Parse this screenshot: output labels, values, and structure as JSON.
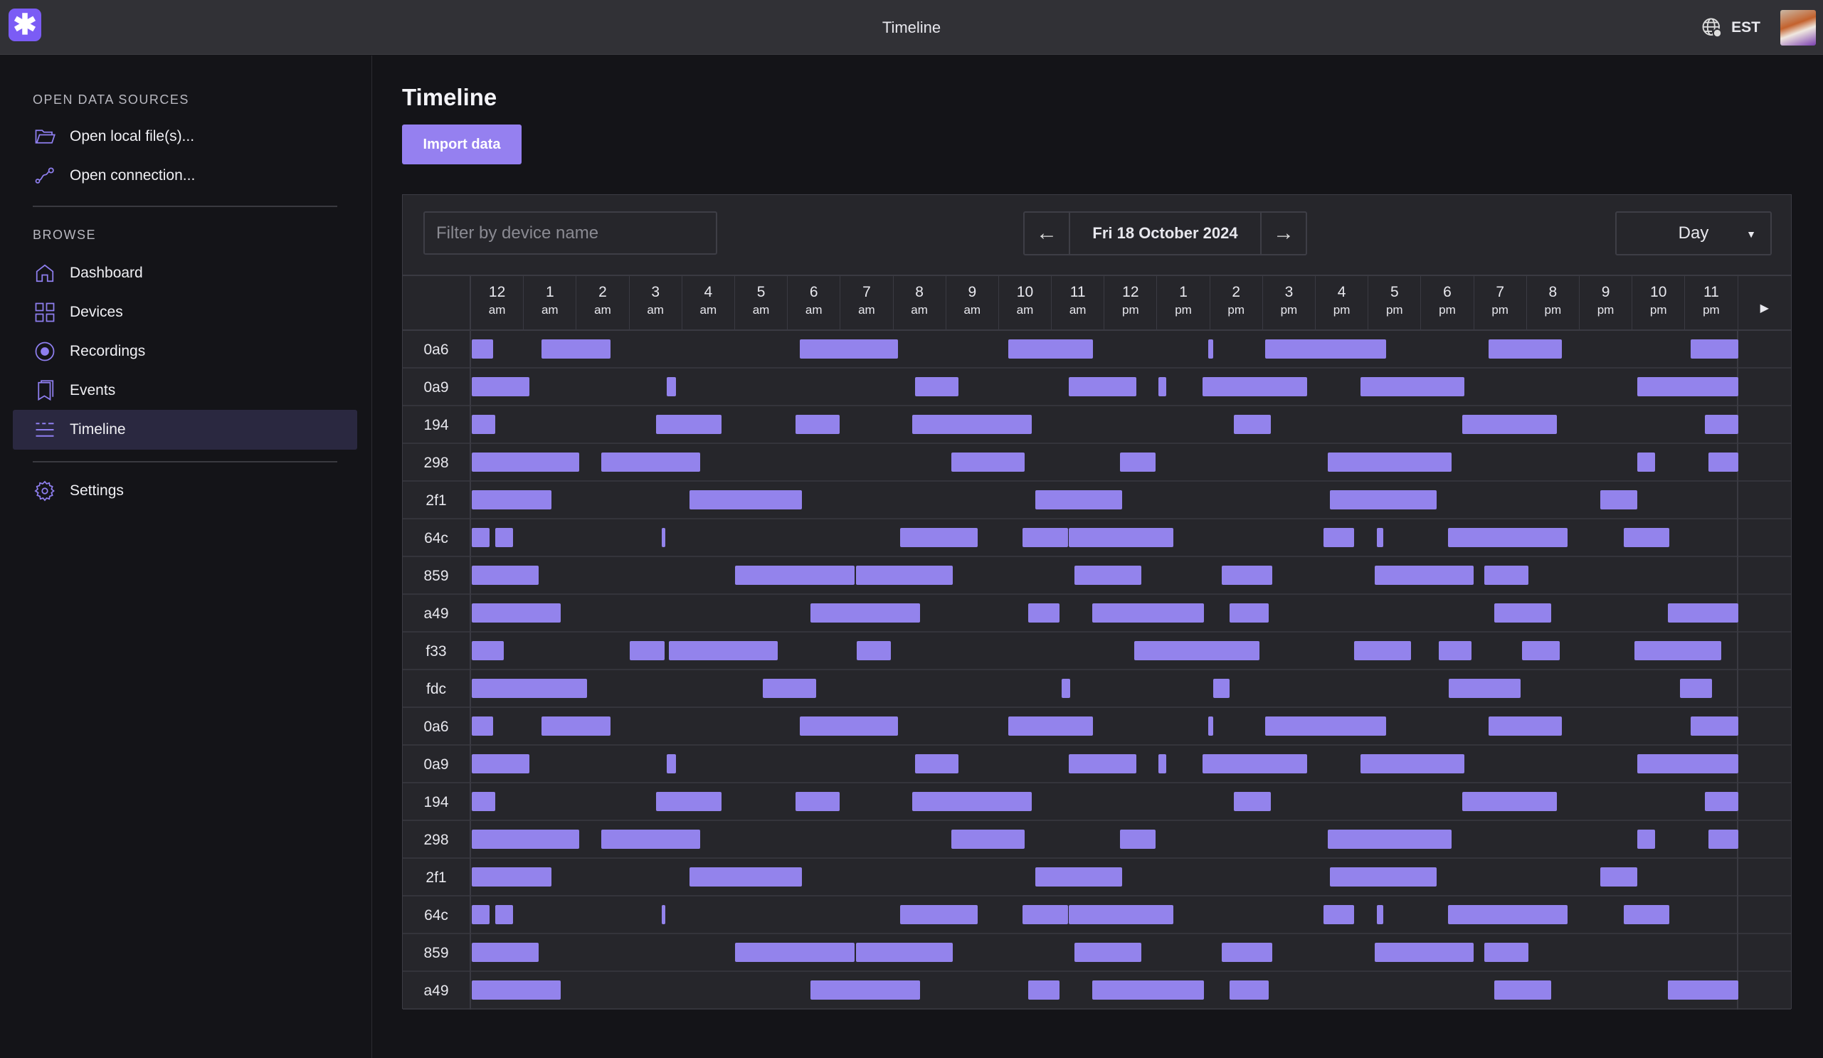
{
  "app": {
    "title": "Timeline",
    "timezone": "EST"
  },
  "sidebar": {
    "sections": [
      {
        "title": "OPEN DATA SOURCES",
        "items": [
          {
            "label": "Open local file(s)...",
            "icon": "folder-icon"
          },
          {
            "label": "Open connection...",
            "icon": "connection-icon"
          }
        ]
      },
      {
        "title": "BROWSE",
        "items": [
          {
            "label": "Dashboard",
            "icon": "home-icon"
          },
          {
            "label": "Devices",
            "icon": "grid-icon"
          },
          {
            "label": "Recordings",
            "icon": "record-icon"
          },
          {
            "label": "Events",
            "icon": "bookmark-icon"
          },
          {
            "label": "Timeline",
            "icon": "timeline-icon",
            "active": true
          }
        ]
      }
    ],
    "settings": {
      "label": "Settings",
      "icon": "gear-icon"
    }
  },
  "main": {
    "title": "Timeline",
    "import_label": "Import data",
    "filter_placeholder": "Filter by device name",
    "date": "Fri 18 October 2024",
    "view": "Day",
    "accent": "#9383ec"
  },
  "chart_data": {
    "type": "timeline",
    "x_unit": "hour of day",
    "xlim": [
      0,
      24
    ],
    "hours": [
      [
        "12",
        "am"
      ],
      [
        "1",
        "am"
      ],
      [
        "2",
        "am"
      ],
      [
        "3",
        "am"
      ],
      [
        "4",
        "am"
      ],
      [
        "5",
        "am"
      ],
      [
        "6",
        "am"
      ],
      [
        "7",
        "am"
      ],
      [
        "8",
        "am"
      ],
      [
        "9",
        "am"
      ],
      [
        "10",
        "am"
      ],
      [
        "11",
        "am"
      ],
      [
        "12",
        "pm"
      ],
      [
        "1",
        "pm"
      ],
      [
        "2",
        "pm"
      ],
      [
        "3",
        "pm"
      ],
      [
        "4",
        "pm"
      ],
      [
        "5",
        "pm"
      ],
      [
        "6",
        "pm"
      ],
      [
        "7",
        "pm"
      ],
      [
        "8",
        "pm"
      ],
      [
        "9",
        "pm"
      ],
      [
        "10",
        "pm"
      ],
      [
        "11",
        "pm"
      ]
    ],
    "devices": [
      {
        "name": "0a6",
        "spans": [
          [
            0.02,
            0.42
          ],
          [
            1.34,
            2.64
          ],
          [
            6.23,
            8.08
          ],
          [
            10.18,
            11.78
          ],
          [
            13.96,
            14.05
          ],
          [
            15.04,
            17.33
          ],
          [
            19.27,
            20.66
          ],
          [
            23.1,
            24
          ]
        ]
      },
      {
        "name": "0a9",
        "spans": [
          [
            0.02,
            1.1
          ],
          [
            3.7,
            3.88
          ],
          [
            8.41,
            9.23
          ],
          [
            11.32,
            12.6
          ],
          [
            13.02,
            13.17
          ],
          [
            13.85,
            15.84
          ],
          [
            16.85,
            18.81
          ],
          [
            22.09,
            24
          ]
        ]
      },
      {
        "name": "194",
        "spans": [
          [
            0.02,
            0.46
          ],
          [
            3.5,
            4.74
          ],
          [
            6.15,
            6.98
          ],
          [
            8.35,
            10.62
          ],
          [
            14.45,
            15.15
          ],
          [
            18.77,
            20.57
          ],
          [
            23.37,
            24
          ]
        ]
      },
      {
        "name": "298",
        "spans": [
          [
            0.02,
            2.05
          ],
          [
            2.47,
            4.34
          ],
          [
            9.1,
            10.48
          ],
          [
            12.29,
            12.97
          ],
          [
            16.23,
            18.57
          ],
          [
            22.09,
            22.42
          ],
          [
            23.44,
            24
          ]
        ]
      },
      {
        "name": "2f1",
        "spans": [
          [
            0.02,
            1.52
          ],
          [
            4.14,
            6.26
          ],
          [
            10.68,
            12.33
          ],
          [
            16.26,
            18.28
          ],
          [
            21.39,
            22.09
          ]
        ]
      },
      {
        "name": "64c",
        "spans": [
          [
            0.02,
            0.35
          ],
          [
            0.46,
            0.79
          ],
          [
            3.61,
            3.68
          ],
          [
            8.13,
            9.6
          ],
          [
            10.44,
            11.3
          ],
          [
            11.32,
            13.3
          ],
          [
            16.15,
            16.72
          ],
          [
            17.16,
            17.27
          ],
          [
            18.5,
            20.77
          ],
          [
            21.83,
            22.69
          ]
        ]
      },
      {
        "name": "859",
        "spans": [
          [
            0.02,
            1.28
          ],
          [
            5,
            7.27
          ],
          [
            7.29,
            9.12
          ],
          [
            11.43,
            12.69
          ],
          [
            14.21,
            15.18
          ],
          [
            17.11,
            18.99
          ],
          [
            19.19,
            20.02
          ]
        ]
      },
      {
        "name": "a49",
        "spans": [
          [
            0.02,
            1.7
          ],
          [
            6.43,
            8.5
          ],
          [
            10.55,
            11.15
          ],
          [
            11.76,
            13.88
          ],
          [
            14.36,
            15.11
          ],
          [
            19.38,
            20.46
          ],
          [
            22.67,
            24
          ]
        ]
      },
      {
        "name": "f33",
        "spans": [
          [
            0.02,
            0.62
          ],
          [
            3,
            3.66
          ],
          [
            3.74,
            5.81
          ],
          [
            7.31,
            7.95
          ],
          [
            12.56,
            14.93
          ],
          [
            16.72,
            17.8
          ],
          [
            18.33,
            18.94
          ],
          [
            19.91,
            20.62
          ],
          [
            22.03,
            23.68
          ]
        ]
      },
      {
        "name": "fdc",
        "spans": [
          [
            0.02,
            2.2
          ],
          [
            5.53,
            6.54
          ],
          [
            11.19,
            11.34
          ],
          [
            14.05,
            14.36
          ],
          [
            18.52,
            19.87
          ],
          [
            22.89,
            23.5
          ]
        ]
      },
      {
        "name": "0a6",
        "spans": [
          [
            0.02,
            0.42
          ],
          [
            1.34,
            2.64
          ],
          [
            6.23,
            8.08
          ],
          [
            10.18,
            11.78
          ],
          [
            13.96,
            14.05
          ],
          [
            15.04,
            17.33
          ],
          [
            19.27,
            20.66
          ],
          [
            23.1,
            24
          ]
        ]
      },
      {
        "name": "0a9",
        "spans": [
          [
            0.02,
            1.1
          ],
          [
            3.7,
            3.88
          ],
          [
            8.41,
            9.23
          ],
          [
            11.32,
            12.6
          ],
          [
            13.02,
            13.17
          ],
          [
            13.85,
            15.84
          ],
          [
            16.85,
            18.81
          ],
          [
            22.09,
            24
          ]
        ]
      },
      {
        "name": "194",
        "spans": [
          [
            0.02,
            0.46
          ],
          [
            3.5,
            4.74
          ],
          [
            6.15,
            6.98
          ],
          [
            8.35,
            10.62
          ],
          [
            14.45,
            15.15
          ],
          [
            18.77,
            20.57
          ],
          [
            23.37,
            24
          ]
        ]
      },
      {
        "name": "298",
        "spans": [
          [
            0.02,
            2.05
          ],
          [
            2.47,
            4.34
          ],
          [
            9.1,
            10.48
          ],
          [
            12.29,
            12.97
          ],
          [
            16.23,
            18.57
          ],
          [
            22.09,
            22.42
          ],
          [
            23.44,
            24
          ]
        ]
      },
      {
        "name": "2f1",
        "spans": [
          [
            0.02,
            1.52
          ],
          [
            4.14,
            6.26
          ],
          [
            10.68,
            12.33
          ],
          [
            16.26,
            18.28
          ],
          [
            21.39,
            22.09
          ]
        ]
      },
      {
        "name": "64c",
        "spans": [
          [
            0.02,
            0.35
          ],
          [
            0.46,
            0.79
          ],
          [
            3.61,
            3.68
          ],
          [
            8.13,
            9.6
          ],
          [
            10.44,
            11.3
          ],
          [
            11.32,
            13.3
          ],
          [
            16.15,
            16.72
          ],
          [
            17.16,
            17.27
          ],
          [
            18.5,
            20.77
          ],
          [
            21.83,
            22.69
          ]
        ]
      },
      {
        "name": "859",
        "spans": [
          [
            0.02,
            1.28
          ],
          [
            5,
            7.27
          ],
          [
            7.29,
            9.12
          ],
          [
            11.43,
            12.69
          ],
          [
            14.21,
            15.18
          ],
          [
            17.11,
            18.99
          ],
          [
            19.19,
            20.02
          ]
        ]
      },
      {
        "name": "a49",
        "spans": [
          [
            0.02,
            1.7
          ],
          [
            6.43,
            8.5
          ],
          [
            10.55,
            11.15
          ],
          [
            11.76,
            13.88
          ],
          [
            14.36,
            15.11
          ],
          [
            19.38,
            20.46
          ],
          [
            22.67,
            24
          ]
        ]
      }
    ]
  }
}
